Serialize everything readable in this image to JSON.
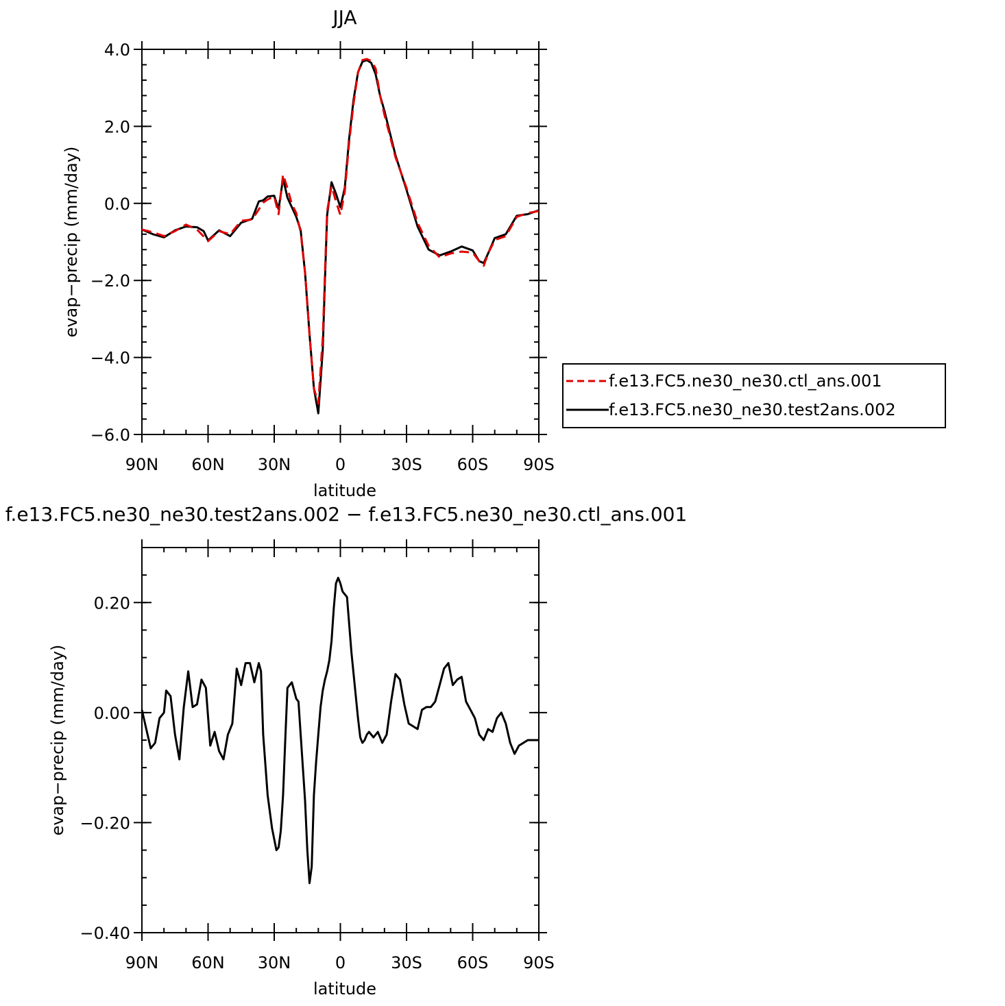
{
  "chart_data": [
    {
      "type": "line",
      "title": "JJA",
      "xlabel": "latitude",
      "ylabel": "evap−precip (mm/day)",
      "xlim": [
        90,
        -90
      ],
      "ylim": [
        -6.0,
        4.0
      ],
      "x_ticks": [
        90,
        60,
        30,
        0,
        -30,
        -60,
        -90
      ],
      "x_tick_labels": [
        "90N",
        "60N",
        "30N",
        "0",
        "30S",
        "60S",
        "90S"
      ],
      "y_ticks": [
        -6.0,
        -4.0,
        -2.0,
        0.0,
        2.0,
        4.0
      ],
      "y_tick_labels": [
        "−6.0",
        "−4.0",
        "−2.0",
        "0.0",
        "2.0",
        "4.0"
      ],
      "legend_position": "right",
      "series": [
        {
          "name": "f.e13.FC5.ne30_ne30.ctl_ans.001",
          "color": "#e00000",
          "dash": "dashed",
          "x": [
            90,
            85,
            80,
            75,
            70,
            65,
            60,
            55,
            50,
            45,
            40,
            35,
            33,
            30,
            28,
            26,
            24,
            22,
            20,
            18,
            16,
            14,
            12,
            10,
            8,
            7,
            6,
            4,
            2,
            0,
            -2,
            -4,
            -6,
            -8,
            -10,
            -12,
            -14,
            -16,
            -18,
            -20,
            -25,
            -30,
            -35,
            -40,
            -45,
            -50,
            -55,
            -60,
            -63,
            -65,
            -67,
            -70,
            -75,
            -80,
            -85,
            -90
          ],
          "y": [
            -0.68,
            -0.75,
            -0.85,
            -0.72,
            -0.55,
            -0.68,
            -0.98,
            -0.72,
            -0.8,
            -0.45,
            -0.42,
            0.02,
            0.1,
            0.18,
            -0.28,
            0.75,
            0.4,
            -0.02,
            -0.25,
            -0.75,
            -1.8,
            -3.4,
            -4.8,
            -5.2,
            -3.5,
            -1.8,
            -0.2,
            0.45,
            0.05,
            -0.3,
            0.3,
            1.6,
            2.6,
            3.4,
            3.72,
            3.75,
            3.7,
            3.5,
            2.8,
            2.3,
            1.2,
            0.4,
            -0.5,
            -1.1,
            -1.4,
            -1.3,
            -1.25,
            -1.28,
            -1.5,
            -1.62,
            -1.3,
            -0.95,
            -0.85,
            -0.35,
            -0.25,
            -0.2
          ]
        },
        {
          "name": "f.e13.FC5.ne30_ne30.test2ans.002",
          "color": "#000000",
          "dash": "solid",
          "x": [
            90,
            85,
            80,
            75,
            70,
            65,
            62,
            60,
            55,
            50,
            45,
            40,
            37,
            35,
            33,
            30,
            28,
            26,
            24,
            22,
            20,
            18,
            16,
            14,
            12,
            10,
            8,
            7,
            6,
            4,
            2,
            0,
            -2,
            -4,
            -6,
            -8,
            -10,
            -12,
            -14,
            -16,
            -18,
            -20,
            -25,
            -30,
            -35,
            -40,
            -45,
            -50,
            -55,
            -60,
            -63,
            -65,
            -67,
            -70,
            -75,
            -80,
            -85,
            -90
          ],
          "y": [
            -0.68,
            -0.8,
            -0.88,
            -0.7,
            -0.6,
            -0.62,
            -0.72,
            -0.96,
            -0.7,
            -0.85,
            -0.5,
            -0.4,
            0.05,
            0.08,
            0.18,
            0.2,
            -0.15,
            0.65,
            0.15,
            -0.1,
            -0.35,
            -0.7,
            -1.8,
            -3.4,
            -4.8,
            -5.45,
            -3.8,
            -2.0,
            -0.3,
            0.55,
            0.25,
            -0.1,
            0.4,
            1.7,
            2.7,
            3.4,
            3.68,
            3.72,
            3.65,
            3.35,
            2.8,
            2.4,
            1.25,
            0.35,
            -0.6,
            -1.2,
            -1.35,
            -1.25,
            -1.12,
            -1.22,
            -1.5,
            -1.55,
            -1.3,
            -0.9,
            -0.8,
            -0.32,
            -0.28,
            -0.18
          ]
        }
      ]
    },
    {
      "type": "line",
      "title": "f.e13.FC5.ne30_ne30.test2ans.002 − f.e13.FC5.ne30_ne30.ctl_ans.001",
      "xlabel": "latitude",
      "ylabel": "evap−precip (mm/day)",
      "xlim": [
        90,
        -90
      ],
      "ylim": [
        -0.4,
        0.3
      ],
      "x_ticks": [
        90,
        60,
        30,
        0,
        -30,
        -60,
        -90
      ],
      "x_tick_labels": [
        "90N",
        "60N",
        "30N",
        "0",
        "30S",
        "60S",
        "90S"
      ],
      "y_ticks": [
        -0.4,
        -0.2,
        0.0,
        0.2
      ],
      "y_tick_labels": [
        "−0.40",
        "−0.20",
        "0.00",
        "0.20"
      ],
      "series": [
        {
          "color": "#000000",
          "dash": "solid",
          "x": [
            90,
            88,
            86,
            84,
            82,
            80,
            79,
            77,
            75,
            73,
            71,
            69,
            67,
            65,
            63,
            61,
            59,
            57,
            55,
            53,
            51,
            49,
            47,
            45,
            43,
            41,
            39,
            37,
            36,
            35,
            33,
            31,
            29,
            28,
            27,
            26,
            25,
            24,
            22,
            20,
            19,
            18,
            17,
            16,
            15,
            14,
            13,
            12,
            11,
            10,
            9,
            8,
            7,
            6,
            5,
            4,
            3,
            2,
            1,
            0,
            -1,
            -2,
            -3,
            -4,
            -5,
            -6,
            -7,
            -8,
            -9,
            -10,
            -11,
            -12,
            -13,
            -15,
            -17,
            -19,
            -21,
            -23,
            -25,
            -27,
            -29,
            -31,
            -33,
            -35,
            -37,
            -39,
            -41,
            -43,
            -45,
            -47,
            -49,
            -51,
            -53,
            -55,
            -57,
            -59,
            -61,
            -63,
            -65,
            -67,
            -69,
            -71,
            -73,
            -75,
            -77,
            -79,
            -81,
            -83,
            -85,
            -87,
            -89,
            -90
          ],
          "y": [
            0.005,
            -0.03,
            -0.065,
            -0.055,
            -0.01,
            0.0,
            0.04,
            0.03,
            -0.04,
            -0.085,
            0.01,
            0.075,
            0.01,
            0.015,
            0.06,
            0.045,
            -0.06,
            -0.035,
            -0.07,
            -0.085,
            -0.04,
            -0.02,
            0.08,
            0.05,
            0.09,
            0.09,
            0.055,
            0.09,
            0.075,
            -0.04,
            -0.15,
            -0.21,
            -0.25,
            -0.245,
            -0.215,
            -0.15,
            -0.05,
            0.045,
            0.055,
            0.025,
            0.02,
            -0.04,
            -0.1,
            -0.16,
            -0.25,
            -0.31,
            -0.28,
            -0.15,
            -0.09,
            -0.04,
            0.01,
            0.04,
            0.06,
            0.075,
            0.095,
            0.13,
            0.19,
            0.235,
            0.245,
            0.235,
            0.22,
            0.215,
            0.21,
            0.16,
            0.11,
            0.07,
            0.03,
            -0.01,
            -0.045,
            -0.055,
            -0.05,
            -0.04,
            -0.035,
            -0.045,
            -0.035,
            -0.055,
            -0.04,
            0.02,
            0.07,
            0.06,
            0.015,
            -0.02,
            -0.025,
            -0.03,
            0.005,
            0.01,
            0.01,
            0.02,
            0.05,
            0.08,
            0.09,
            0.05,
            0.06,
            0.065,
            0.02,
            0.005,
            -0.01,
            -0.04,
            -0.05,
            -0.03,
            -0.035,
            -0.01,
            0.0,
            -0.02,
            -0.055,
            -0.075,
            -0.06,
            -0.055,
            -0.05,
            -0.05,
            -0.05,
            -0.05
          ]
        }
      ]
    }
  ]
}
